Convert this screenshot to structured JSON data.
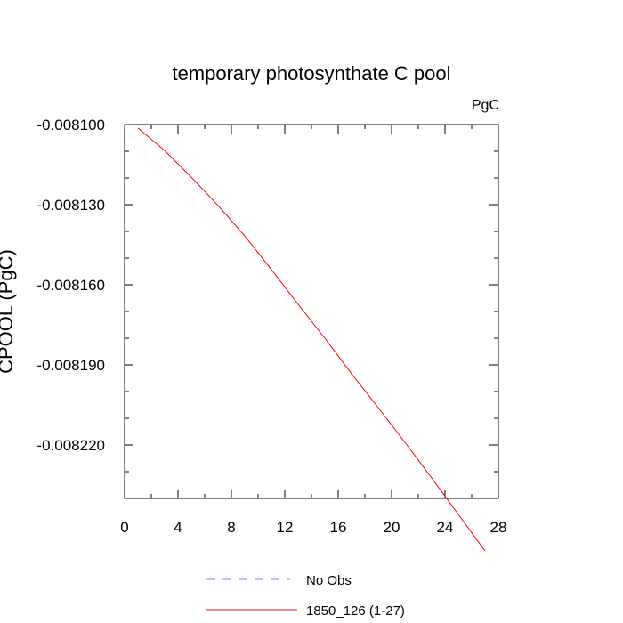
{
  "chart_data": {
    "type": "line",
    "title": "temporary photosynthate C pool",
    "units": "PgC",
    "ylabel": "CPOOL  (PgC)",
    "xlabel": "",
    "xlim": [
      0,
      28
    ],
    "ylim": [
      -0.00824,
      -0.0081
    ],
    "x_ticks": [
      0,
      4,
      8,
      12,
      16,
      20,
      24,
      28
    ],
    "x_tick_labels": [
      "0",
      "4",
      "8",
      "12",
      "16",
      "20",
      "24",
      "28"
    ],
    "y_ticks": [
      -0.0081,
      -0.00813,
      -0.00816,
      -0.00819,
      -0.00822
    ],
    "y_tick_labels": [
      "-0.008100",
      "-0.008130",
      "-0.008160",
      "-0.008190",
      "-0.008220"
    ],
    "grid": false,
    "legend_position": "bottom",
    "series": [
      {
        "name": "No Obs",
        "color": "#8080ff",
        "style": "dashed",
        "x": [],
        "y": []
      },
      {
        "name": "1850_126 (1-27)",
        "color": "#ff0000",
        "style": "solid",
        "x": [
          1,
          3,
          5,
          7,
          9,
          11,
          13,
          15,
          17,
          19,
          21,
          23,
          25,
          27
        ],
        "y": [
          -0.0081013,
          -0.0081097,
          -0.0081197,
          -0.0081303,
          -0.0081417,
          -0.0081543,
          -0.0081673,
          -0.00818,
          -0.0081933,
          -0.008206,
          -0.008219,
          -0.0082323,
          -0.008246,
          -0.0082597
        ]
      }
    ]
  }
}
